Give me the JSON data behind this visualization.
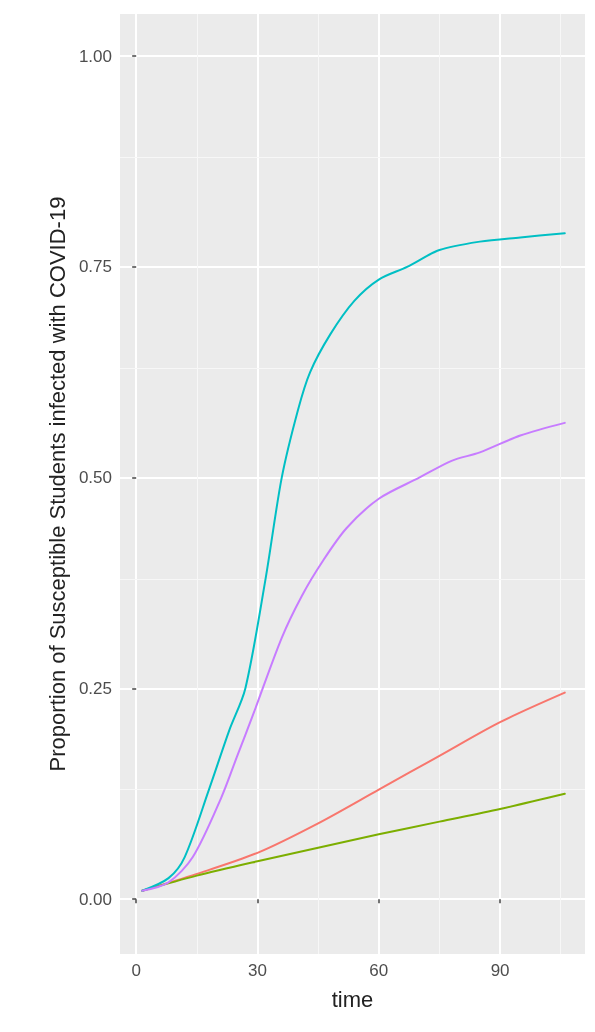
{
  "chart_data": {
    "type": "line",
    "xlabel": "time",
    "ylabel": "Proportion of Susceptible Students infected with COVID-19",
    "xlim": [
      -4,
      111
    ],
    "ylim": [
      -0.065,
      1.05
    ],
    "xticks": [
      0,
      30,
      60,
      90
    ],
    "yticks": [
      {
        "value": 0,
        "label": "0.00"
      },
      {
        "value": 0.25,
        "label": "0.25"
      },
      {
        "value": 0.5,
        "label": "0.50"
      },
      {
        "value": 0.75,
        "label": "0.75"
      },
      {
        "value": 1,
        "label": "1.00"
      }
    ],
    "grid": true,
    "marker": "none",
    "line_style": "solid",
    "series": [
      {
        "color": "#F8766D",
        "x": [
          1.5,
          15,
          30,
          45,
          60,
          75,
          90,
          106
        ],
        "values": [
          0.01,
          0.03,
          0.055,
          0.09,
          0.13,
          0.17,
          0.21,
          0.245
        ]
      },
      {
        "color": "#7CAE00",
        "x": [
          1.5,
          15,
          30,
          45,
          60,
          75,
          90,
          106
        ],
        "values": [
          0.01,
          0.028,
          0.045,
          0.061,
          0.077,
          0.092,
          0.107,
          0.125
        ]
      },
      {
        "color": "#00BFC4",
        "x": [
          1.5,
          8,
          12,
          18,
          23,
          27,
          32,
          36,
          40,
          43,
          48,
          54,
          60,
          67,
          75,
          85,
          95,
          106
        ],
        "values": [
          0.01,
          0.025,
          0.05,
          0.13,
          0.2,
          0.25,
          0.38,
          0.5,
          0.58,
          0.625,
          0.67,
          0.71,
          0.735,
          0.75,
          0.77,
          0.78,
          0.785,
          0.79
        ]
      },
      {
        "color": "#C77CFF",
        "x": [
          1.5,
          8,
          14,
          21,
          25,
          29,
          36,
          41,
          46,
          52,
          60,
          70,
          78,
          85,
          95,
          106
        ],
        "values": [
          0.01,
          0.02,
          0.05,
          0.12,
          0.17,
          0.22,
          0.31,
          0.36,
          0.4,
          0.44,
          0.475,
          0.5,
          0.52,
          0.53,
          0.55,
          0.565
        ]
      }
    ]
  }
}
